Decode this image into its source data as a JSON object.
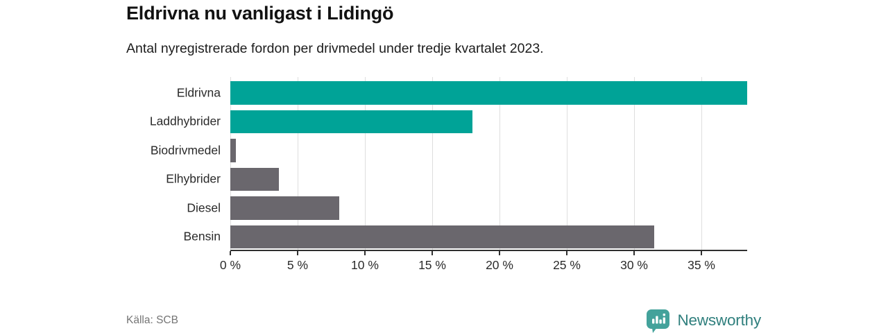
{
  "header": {
    "title": "Eldrivna nu vanligast i Lidingö",
    "subtitle": "Antal nyregistrerade fordon per drivmedel under tredje kvartalet 2023."
  },
  "chart_data": {
    "type": "bar",
    "orientation": "horizontal",
    "title": "Eldrivna nu vanligast i Lidingö",
    "subtitle": "Antal nyregistrerade fordon per drivmedel under tredje kvartalet 2023.",
    "categories": [
      "Eldrivna",
      "Laddhybrider",
      "Biodrivmedel",
      "Elhybrider",
      "Diesel",
      "Bensin"
    ],
    "values": [
      38.4,
      18.0,
      0.4,
      3.6,
      8.1,
      31.5
    ],
    "unit": "%",
    "xlim": [
      0,
      38.4
    ],
    "xticks": [
      {
        "value": 0,
        "label": "0 %"
      },
      {
        "value": 5,
        "label": "5 %"
      },
      {
        "value": 10,
        "label": "10 %"
      },
      {
        "value": 15,
        "label": "15 %"
      },
      {
        "value": 20,
        "label": "20 %"
      },
      {
        "value": 25,
        "label": "25 %"
      },
      {
        "value": 30,
        "label": "30 %"
      },
      {
        "value": 35,
        "label": "35 %"
      }
    ],
    "grid": true,
    "legend": false,
    "bar_colors": [
      "#00a397",
      "#00a397",
      "#6a676d",
      "#6a676d",
      "#6a676d",
      "#6a676d"
    ]
  },
  "colors": {
    "accent_teal": "#00a397",
    "neutral_gray": "#6a676d",
    "grid": "#dedede",
    "axis": "#2f2f2f",
    "brand_text": "#2f7f7d",
    "logo_mark": "#43a29b"
  },
  "footer": {
    "source": "Källa: SCB",
    "brand": "Newsworthy"
  }
}
